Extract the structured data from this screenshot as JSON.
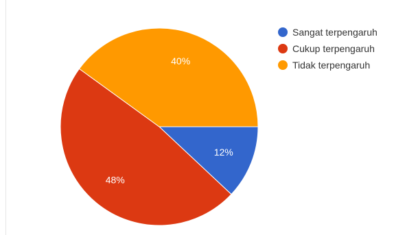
{
  "chart_data": {
    "type": "pie",
    "title": "",
    "legend_position": "right",
    "slices": [
      {
        "name": "Sangat terpengaruh",
        "value": 12,
        "label": "12%",
        "color": "#3366cc"
      },
      {
        "name": "Cukup terpengaruh",
        "value": 48,
        "label": "48%",
        "color": "#dc3912"
      },
      {
        "name": "Tidak terpengaruh",
        "value": 40,
        "label": "40%",
        "color": "#ff9900"
      }
    ]
  }
}
